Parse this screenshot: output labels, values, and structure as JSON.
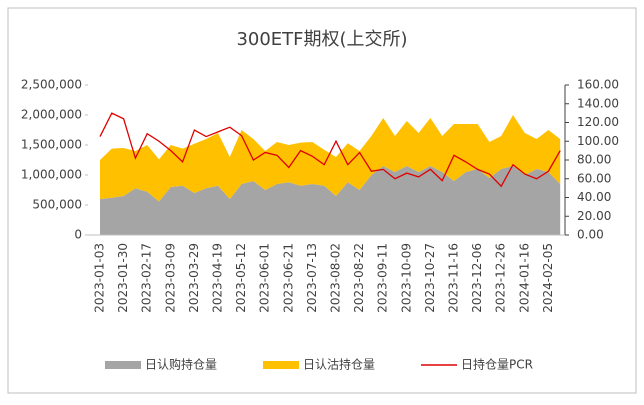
{
  "chart_data": {
    "type": "stacked-area-line",
    "title": "300ETF期权(上交所)",
    "categories": [
      "2023-01-03",
      null,
      "2023-01-30",
      null,
      "2023-02-17",
      null,
      "2023-03-09",
      null,
      "2023-03-29",
      null,
      "2023-04-19",
      null,
      "2023-05-12",
      null,
      "2023-06-01",
      null,
      "2023-06-21",
      null,
      "2023-07-13",
      null,
      "2023-08-02",
      null,
      "2023-08-22",
      null,
      "2023-09-11",
      null,
      "2023-10-09",
      null,
      "2023-10-27",
      null,
      "2023-11-16",
      null,
      "2023-12-06",
      null,
      "2023-12-26",
      null,
      "2024-01-16",
      null,
      "2024-02-05",
      null
    ],
    "series": [
      {
        "name": "日认购持仓量",
        "color": "#a5a5a5",
        "kind": "area",
        "values": [
          600000,
          620000,
          650000,
          780000,
          720000,
          560000,
          800000,
          820000,
          700000,
          780000,
          820000,
          600000,
          850000,
          900000,
          750000,
          850000,
          880000,
          820000,
          850000,
          820000,
          650000,
          880000,
          750000,
          1000000,
          1150000,
          1050000,
          1150000,
          1050000,
          1150000,
          1050000,
          900000,
          1050000,
          1100000,
          950000,
          1100000,
          1150000,
          1000000,
          1100000,
          1050000,
          850000
        ]
      },
      {
        "name": "日认沽持仓量",
        "color": "#ffc000",
        "kind": "area",
        "values": [
          650000,
          820000,
          800000,
          620000,
          780000,
          700000,
          700000,
          620000,
          820000,
          820000,
          880000,
          700000,
          900000,
          700000,
          650000,
          700000,
          620000,
          720000,
          700000,
          600000,
          650000,
          650000,
          650000,
          650000,
          800000,
          600000,
          750000,
          650000,
          800000,
          600000,
          950000,
          800000,
          750000,
          600000,
          550000,
          850000,
          700000,
          500000,
          700000,
          750000
        ]
      },
      {
        "name": "日持仓量PCR",
        "color": "#e00000",
        "kind": "line",
        "axis": "y2",
        "values": [
          105,
          130,
          124,
          82,
          108,
          100,
          90,
          78,
          112,
          105,
          110,
          115,
          106,
          80,
          88,
          85,
          72,
          90,
          84,
          75,
          100,
          75,
          88,
          68,
          70,
          60,
          66,
          62,
          70,
          58,
          85,
          78,
          70,
          65,
          52,
          75,
          65,
          60,
          68,
          90
        ]
      }
    ],
    "ylim": [
      0,
      2500000
    ],
    "yticks": [
      0,
      {
        "value": 500000,
        "label": "500,000"
      },
      {
        "value": 1000000,
        "label": "1,000,000"
      },
      {
        "value": 1500000,
        "label": "1,500,000"
      },
      {
        "value": 2000000,
        "label": "2,000,000"
      },
      {
        "value": 2500000,
        "label": "2,500,000"
      }
    ],
    "y2lim": [
      0,
      160
    ],
    "y2ticks": [
      {
        "value": 0,
        "label": "0.00"
      },
      {
        "value": 20,
        "label": "20.00"
      },
      {
        "value": 40,
        "label": "40.00"
      },
      {
        "value": 60,
        "label": "60.00"
      },
      {
        "value": 80,
        "label": "80.00"
      },
      {
        "value": 100,
        "label": "100.00"
      },
      {
        "value": 120,
        "label": "120.00"
      },
      {
        "value": 140,
        "label": "140.00"
      },
      {
        "value": 160,
        "label": "160.00"
      }
    ],
    "legend": "bottom"
  }
}
